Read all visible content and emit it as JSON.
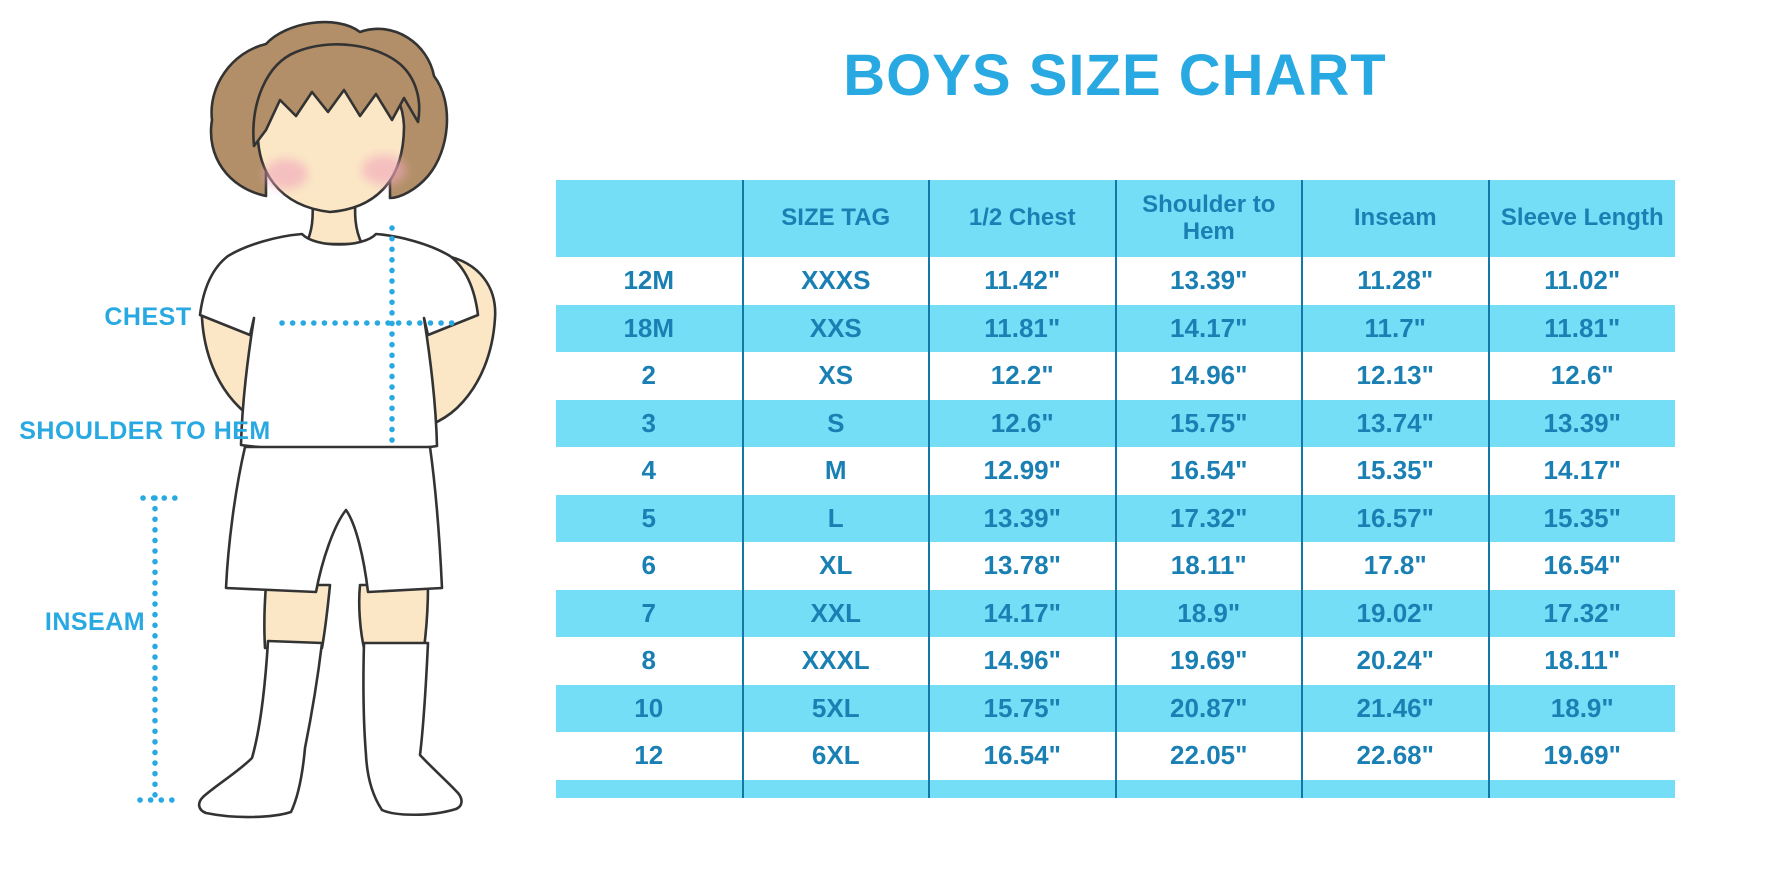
{
  "title": "BOYS SIZE CHART",
  "figure": {
    "labels": {
      "chest": "CHEST",
      "shoulder_to_hem": "SHOULDER TO HEM",
      "inseam": "INSEAM"
    }
  },
  "chart_data": {
    "type": "table",
    "title": "BOYS SIZE CHART",
    "columns": [
      "",
      "SIZE TAG",
      "1/2 Chest",
      "Shoulder to Hem",
      "Inseam",
      "Sleeve Length"
    ],
    "rows": [
      [
        "12M",
        "XXXS",
        "11.42\"",
        "13.39\"",
        "11.28\"",
        "11.02\""
      ],
      [
        "18M",
        "XXS",
        "11.81\"",
        "14.17\"",
        "11.7\"",
        "11.81\""
      ],
      [
        "2",
        "XS",
        "12.2\"",
        "14.96\"",
        "12.13\"",
        "12.6\""
      ],
      [
        "3",
        "S",
        "12.6\"",
        "15.75\"",
        "13.74\"",
        "13.39\""
      ],
      [
        "4",
        "M",
        "12.99\"",
        "16.54\"",
        "15.35\"",
        "14.17\""
      ],
      [
        "5",
        "L",
        "13.39\"",
        "17.32\"",
        "16.57\"",
        "15.35\""
      ],
      [
        "6",
        "XL",
        "13.78\"",
        "18.11\"",
        "17.8\"",
        "16.54\""
      ],
      [
        "7",
        "XXL",
        "14.17\"",
        "18.9\"",
        "19.02\"",
        "17.32\""
      ],
      [
        "8",
        "XXXL",
        "14.96\"",
        "19.69\"",
        "20.24\"",
        "18.11\""
      ],
      [
        "10",
        "5XL",
        "15.75\"",
        "20.87\"",
        "21.46\"",
        "18.9\""
      ],
      [
        "12",
        "6XL",
        "16.54\"",
        "22.05\"",
        "22.68\"",
        "19.69\""
      ]
    ],
    "units": "inches",
    "layout": {
      "stripes": "alternating",
      "grid": "vertical-only"
    }
  },
  "colors": {
    "accent": "#29A9E1",
    "stripe": "#75DEF7",
    "table_text": "#1A80B4",
    "grid_line": "#1577A7",
    "hair": "#B28F68",
    "skin": "#FBE7C6",
    "cheek": "#F2A9BC",
    "outline": "#333333"
  }
}
